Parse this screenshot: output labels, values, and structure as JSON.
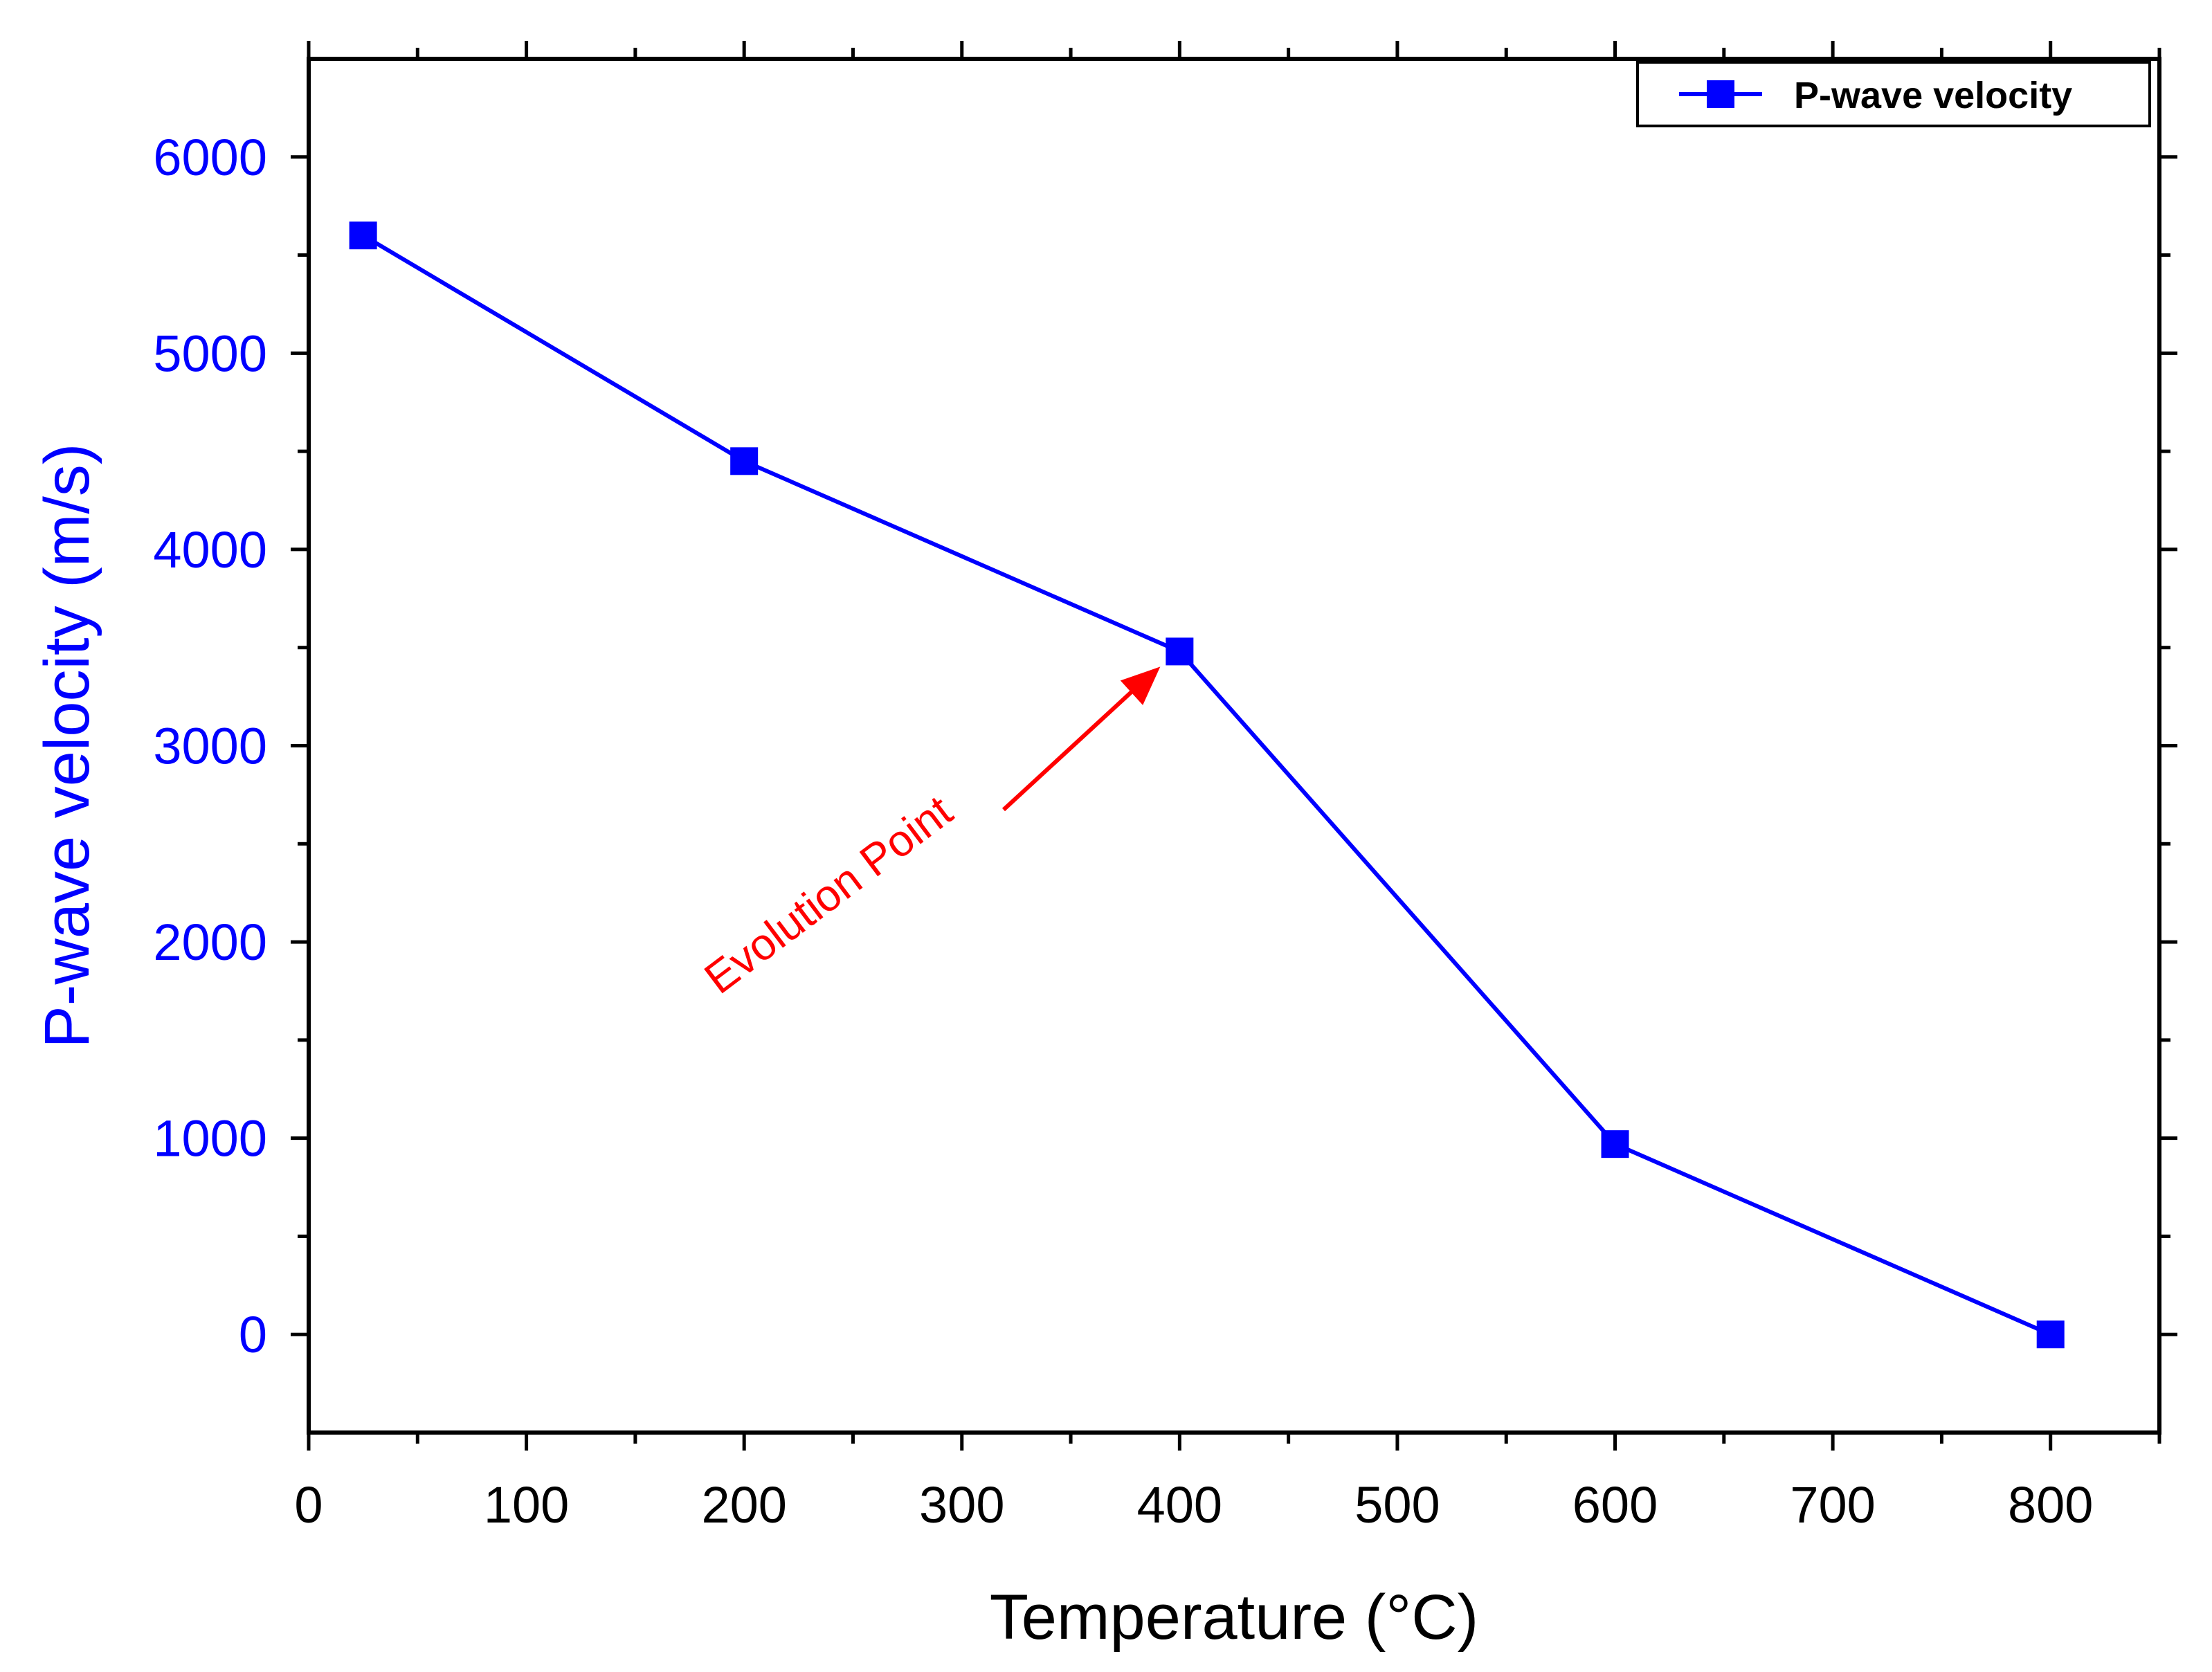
{
  "colors": {
    "series": "#0000ff",
    "axis": "#000000",
    "annotation": "#ff0000",
    "background": "#ffffff"
  },
  "chart_data": {
    "type": "line",
    "xlabel": "Temperature (°C)",
    "ylabel": "P-wave velocity (m/s)",
    "xlim": [
      0,
      850
    ],
    "ylim": [
      -500,
      6500
    ],
    "x_ticks": [
      0,
      100,
      200,
      300,
      400,
      500,
      600,
      700,
      800
    ],
    "y_ticks": [
      0,
      1000,
      2000,
      3000,
      4000,
      5000,
      6000
    ],
    "grid": false,
    "legend": {
      "position": "top-right",
      "entries": [
        "P-wave velocity"
      ]
    },
    "series": [
      {
        "name": "P-wave velocity",
        "marker": "square",
        "x": [
          25,
          200,
          400,
          600,
          800
        ],
        "y": [
          5600,
          4450,
          3480,
          970,
          0
        ]
      }
    ],
    "annotations": [
      {
        "text": "Evolution Point",
        "points_to": {
          "x": 400,
          "y": 3480
        }
      }
    ]
  }
}
